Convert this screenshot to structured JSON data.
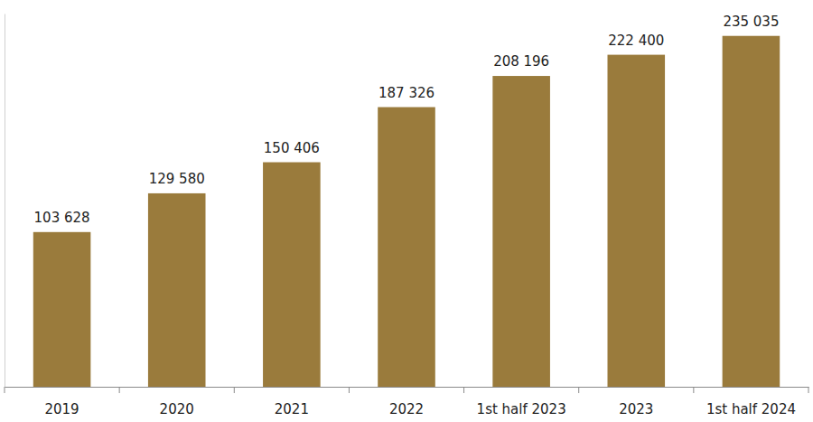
{
  "chart_data": {
    "type": "bar",
    "categories": [
      "2019",
      "2020",
      "2021",
      "2022",
      "1st half 2023",
      "2023",
      "1st half 2024"
    ],
    "values": [
      103628,
      129580,
      150406,
      187326,
      208196,
      222400,
      235035
    ],
    "value_labels": [
      "103 628",
      "129 580",
      "150 406",
      "187 326",
      "208 196",
      "222 400",
      "235 035"
    ],
    "color": "#9a7b3c",
    "ylim": [
      0,
      250000
    ],
    "yticks": [],
    "grid": false,
    "data_labels": true,
    "tick_labels": "x"
  }
}
